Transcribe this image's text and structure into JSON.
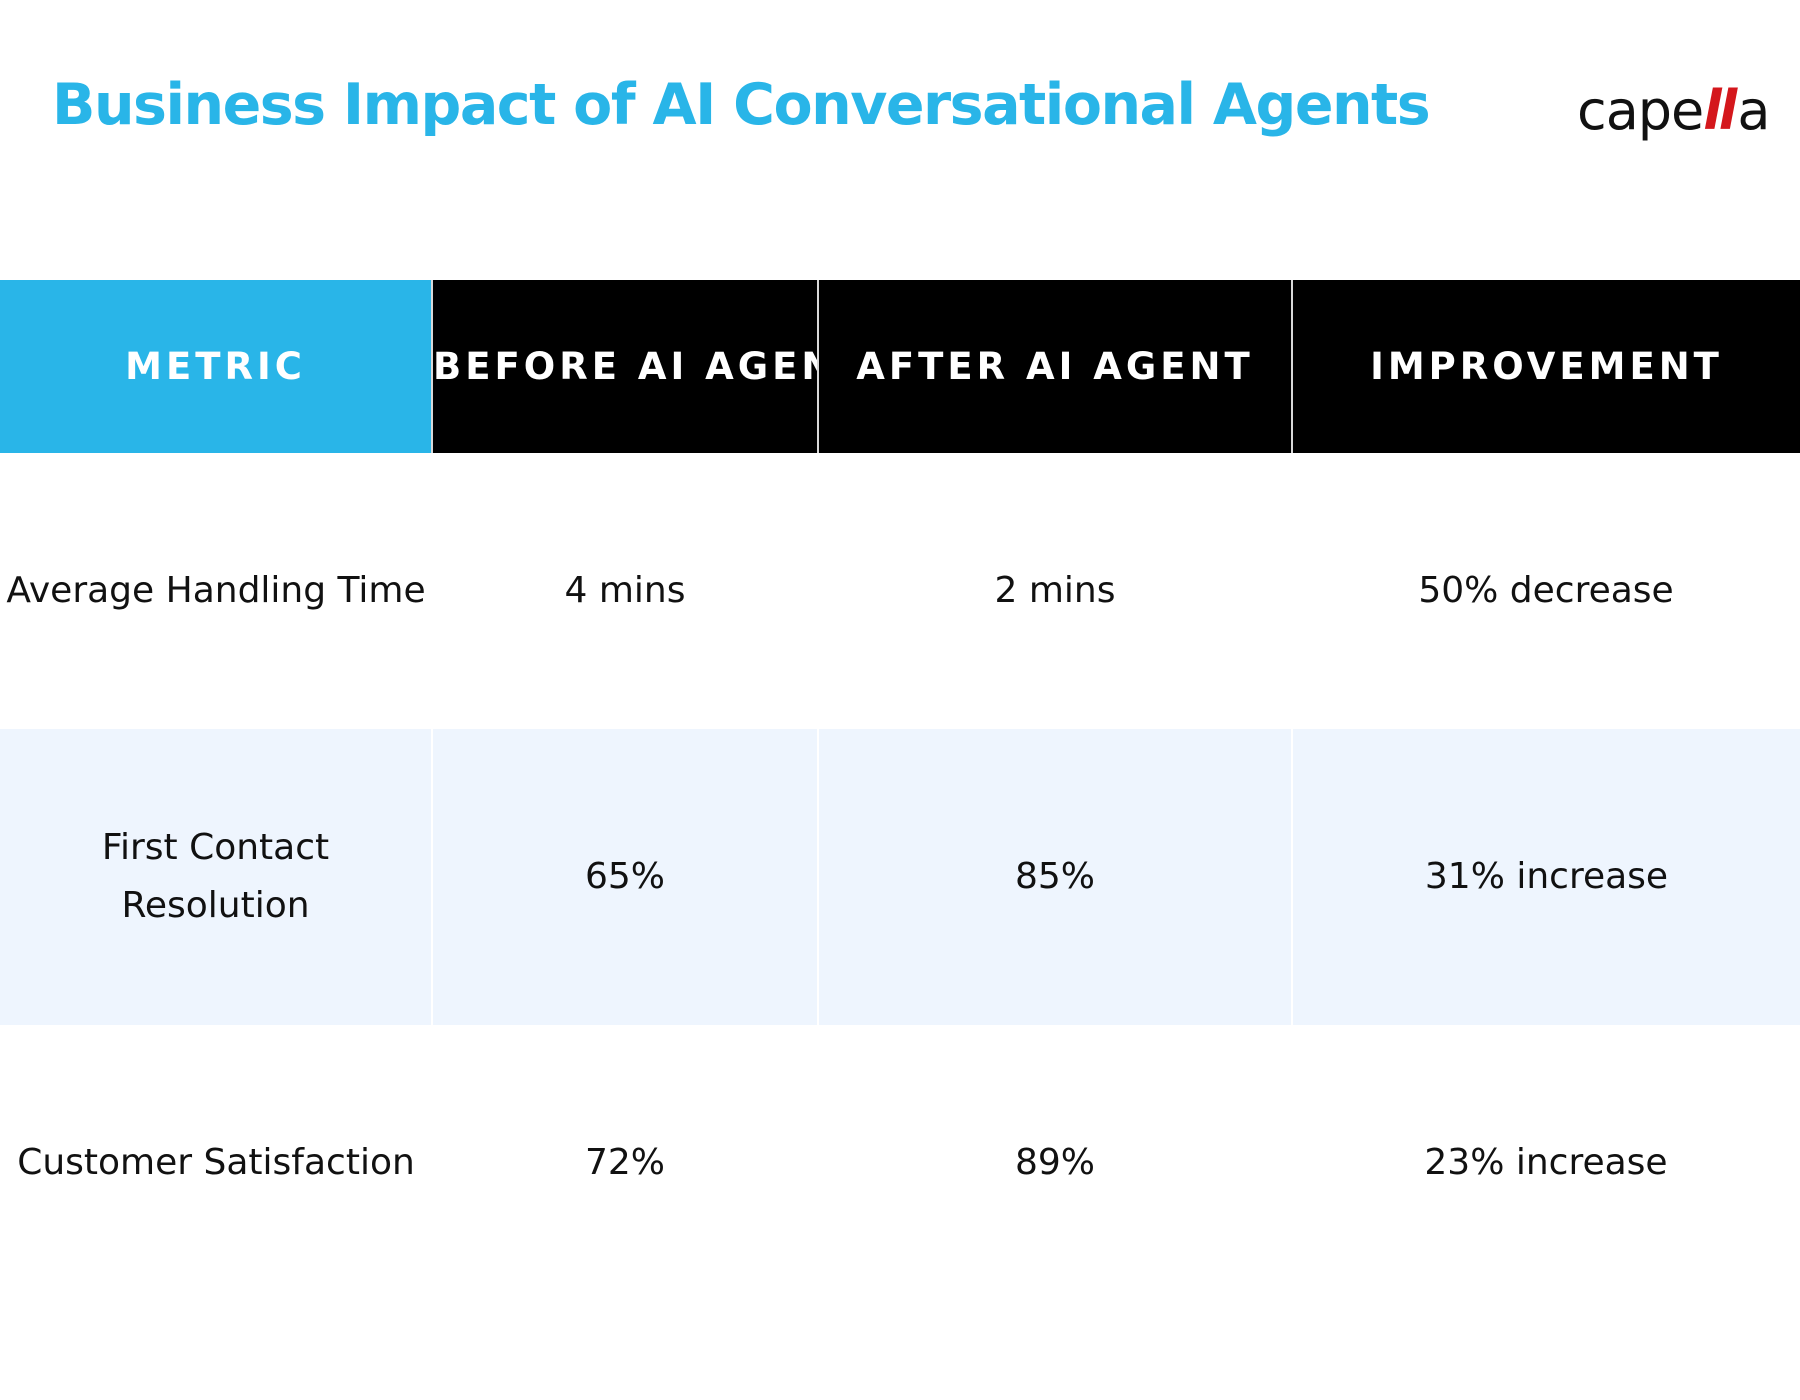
{
  "title": "Business Impact of AI Conversational Agents",
  "logo": {
    "prefix": "cape",
    "accent": "ll",
    "suffix": "a"
  },
  "colors": {
    "title": "#29b5e8",
    "metric_header_bg": "#29b5e8",
    "header_bg": "#000000",
    "striped_row_bg": "#eef5fe",
    "logo_accent": "#d4171c"
  },
  "table": {
    "headers": [
      "METRIC",
      "BEFORE AI AGENT",
      "AFTER AI AGENT",
      "IMPROVEMENT"
    ],
    "rows": [
      {
        "metric": "Average Handling Time",
        "before": "4 mins",
        "after": "2 mins",
        "improvement": "50% decrease"
      },
      {
        "metric": "First Contact Resolution",
        "before": "65%",
        "after": "85%",
        "improvement": "31% increase"
      },
      {
        "metric": "Customer Satisfaction",
        "before": "72%",
        "after": "89%",
        "improvement": "23% increase"
      }
    ]
  }
}
